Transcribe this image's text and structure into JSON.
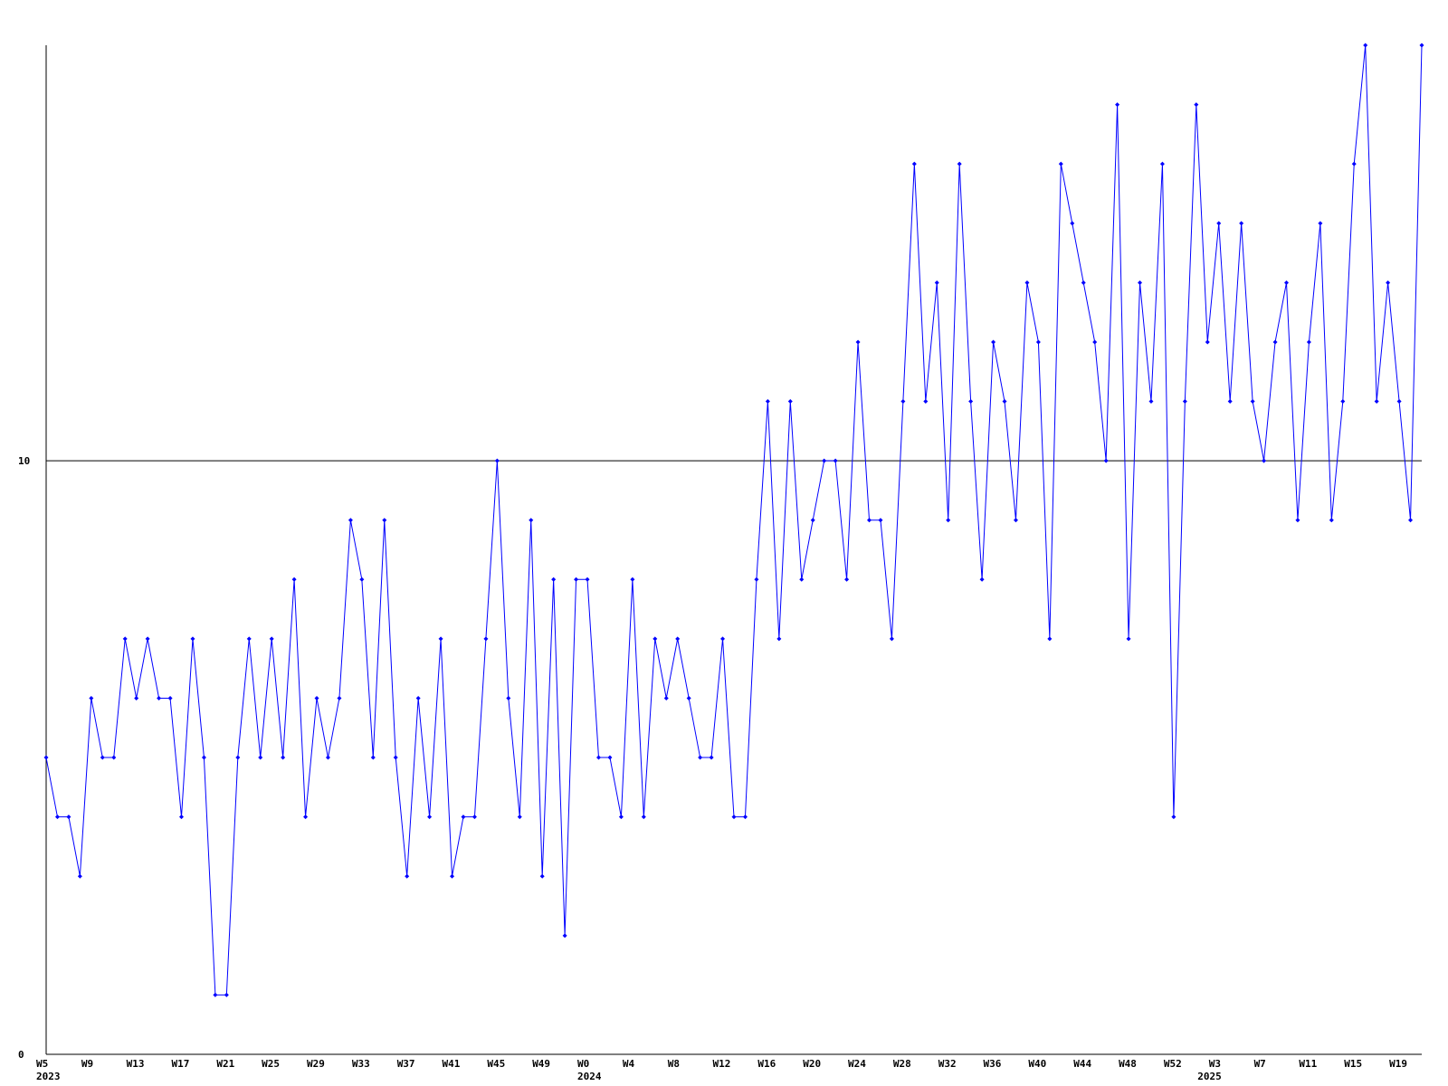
{
  "chart_data": {
    "type": "line",
    "categories": [
      "W5",
      null,
      null,
      null,
      "W9",
      null,
      null,
      null,
      "W13",
      null,
      null,
      null,
      "W17",
      null,
      null,
      null,
      "W21",
      null,
      null,
      null,
      "W25",
      null,
      null,
      null,
      "W29",
      null,
      null,
      null,
      "W33",
      null,
      null,
      null,
      "W37",
      null,
      null,
      null,
      "W41",
      null,
      null,
      null,
      "W45",
      null,
      null,
      null,
      "W49",
      null,
      null,
      null,
      "W0",
      null,
      null,
      null,
      "W4",
      null,
      null,
      null,
      "W8",
      null,
      null,
      null,
      "W12",
      null,
      null,
      null,
      "W16",
      null,
      null,
      null,
      "W20",
      null,
      null,
      null,
      "W24",
      null,
      null,
      null,
      "W28",
      null,
      null,
      null,
      "W32",
      null,
      null,
      null,
      "W36",
      null,
      null,
      null,
      "W40",
      null,
      null,
      null,
      "W44",
      null,
      null,
      null,
      "W48",
      null,
      null,
      null,
      "W52",
      null,
      null,
      null,
      "W3",
      null,
      null,
      null,
      "W7",
      null,
      null,
      null,
      "W11",
      null,
      null,
      null,
      "W15",
      null,
      null,
      null,
      "W19",
      null,
      null
    ],
    "year_labels": [
      "2023",
      null,
      null,
      null,
      null,
      null,
      null,
      null,
      null,
      null,
      null,
      null,
      null,
      null,
      null,
      null,
      null,
      null,
      null,
      null,
      null,
      null,
      null,
      null,
      null,
      null,
      null,
      null,
      null,
      null,
      null,
      null,
      null,
      null,
      null,
      null,
      null,
      null,
      null,
      null,
      null,
      null,
      null,
      null,
      null,
      null,
      null,
      null,
      "2024",
      null,
      null,
      null,
      null,
      null,
      null,
      null,
      null,
      null,
      null,
      null,
      null,
      null,
      null,
      null,
      null,
      null,
      null,
      null,
      null,
      null,
      null,
      null,
      null,
      null,
      null,
      null,
      null,
      null,
      null,
      null,
      null,
      null,
      null,
      null,
      null,
      null,
      null,
      null,
      null,
      null,
      null,
      null,
      null,
      null,
      null,
      null,
      null,
      null,
      null,
      null,
      null,
      null,
      null,
      "2025",
      null,
      null,
      null,
      null,
      null,
      null,
      null,
      null,
      null,
      null,
      null,
      null,
      null,
      null,
      null,
      null,
      null,
      null,
      null,
      null,
      null
    ],
    "series": [
      {
        "color": "#0000ff",
        "values": [
          5,
          4,
          4,
          3,
          6,
          5,
          5,
          7,
          6,
          7,
          6,
          6,
          4,
          7,
          5,
          1,
          1,
          5,
          7,
          5,
          7,
          5,
          8,
          4,
          6,
          5,
          6,
          9,
          8,
          5,
          9,
          5,
          3,
          6,
          4,
          7,
          3,
          4,
          4,
          7,
          10,
          6,
          4,
          9,
          3,
          8,
          2,
          8,
          8,
          5,
          5,
          4,
          8,
          4,
          7,
          6,
          7,
          6,
          5,
          5,
          7,
          4,
          4,
          8,
          11,
          7,
          11,
          8,
          9,
          10,
          10,
          8,
          12,
          9,
          9,
          7,
          11,
          15,
          11,
          13,
          9,
          15,
          11,
          8,
          12,
          11,
          9,
          13,
          12,
          7,
          15,
          14,
          13,
          12,
          10,
          16,
          7,
          13,
          11,
          15,
          4,
          11,
          16,
          12,
          14,
          11,
          14,
          11,
          10,
          12,
          13,
          9,
          12,
          14,
          9,
          11,
          15,
          17,
          11,
          13,
          11,
          9,
          17
        ]
      }
    ],
    "ylim": [
      0,
      17
    ],
    "yticks": [
      0,
      10
    ],
    "grid": true
  }
}
